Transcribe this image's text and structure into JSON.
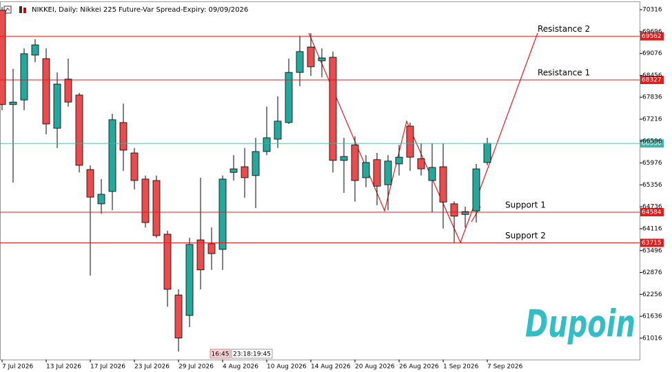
{
  "chart_data": {
    "type": "candlestick",
    "title": "NIKKEI, Daily:  Nikkei 225 Future-Var Spread-Expiry: 09/09/2026",
    "categories": [
      "7 Jul 2026",
      null,
      null,
      null,
      "13 Jul 2026",
      null,
      null,
      null,
      "17 Jul 2026",
      null,
      null,
      null,
      "23 Jul 2026",
      null,
      null,
      null,
      "29 Jul 2026",
      null,
      null,
      null,
      "4 Aug 2026",
      null,
      null,
      null,
      "10 Aug 2026",
      null,
      null,
      null,
      "14 Aug 2026",
      null,
      null,
      null,
      "20 Aug 2026",
      null,
      null,
      null,
      "26 Aug 2026",
      null,
      null,
      null,
      "1 Sep 2026",
      null,
      null,
      null,
      "7 Sep 2026"
    ],
    "series": [
      {
        "up_color": "#28a79c",
        "down_color": "#e84c4c",
        "open": [
          70300,
          67630,
          67760,
          69030,
          68930,
          66960,
          68350,
          67900,
          65790,
          64820,
          65170,
          67120,
          66260,
          65520,
          65480,
          63960,
          62240,
          61660,
          63800,
          63690,
          63530,
          65710,
          65870,
          65620,
          66300,
          66650,
          67120,
          68540,
          69260,
          68870,
          68970,
          66050,
          66490,
          65560,
          66070,
          65360,
          65950,
          67020,
          66100,
          65480,
          65870,
          64820,
          64520,
          64620,
          65990
        ],
        "high": [
          70390,
          68640,
          69220,
          69480,
          69220,
          68540,
          68930,
          67960,
          65910,
          65520,
          67370,
          67660,
          66400,
          65620,
          65620,
          64060,
          62400,
          63860,
          65560,
          64150,
          65620,
          66200,
          66400,
          66690,
          67570,
          67860,
          68930,
          69580,
          69650,
          69220,
          69130,
          66690,
          66730,
          66200,
          66260,
          66200,
          66490,
          67120,
          66530,
          66530,
          66530,
          64890,
          64740,
          65950,
          66690
        ],
        "low": [
          67470,
          65420,
          67470,
          68830,
          66790,
          66400,
          67570,
          65710,
          62790,
          64540,
          64640,
          65750,
          65230,
          64150,
          63860,
          61910,
          60640,
          61330,
          62400,
          62950,
          62950,
          65480,
          64990,
          64700,
          66200,
          66400,
          67080,
          68150,
          68440,
          68400,
          65710,
          65130,
          64880,
          65290,
          64780,
          64640,
          65620,
          65750,
          65620,
          64580,
          64120,
          63720,
          64150,
          64290,
          65910
        ],
        "close": [
          67630,
          67700,
          69070,
          69320,
          67080,
          68210,
          67700,
          65910,
          65010,
          65090,
          67200,
          66340,
          65480,
          64290,
          63920,
          62400,
          61020,
          63670,
          62950,
          63410,
          65520,
          65810,
          65560,
          66300,
          66690,
          67160,
          68540,
          69130,
          68700,
          68950,
          66050,
          66160,
          65480,
          65990,
          65320,
          66030,
          66140,
          66140,
          65810,
          65850,
          64870,
          64470,
          64600,
          65810,
          66530
        ]
      }
    ],
    "ylim": [
      60410,
      70590
    ],
    "yticks": [
      70316,
      69696,
      69076,
      68456,
      67836,
      67216,
      66596,
      65976,
      65356,
      64736,
      64116,
      63496,
      62876,
      62256,
      61636,
      61016
    ],
    "levels": [
      {
        "label": "Resistance 2",
        "value": 69562,
        "color": "#e31b1b"
      },
      {
        "label": "Resistance 1",
        "value": 68327,
        "color": "#e31b1b"
      },
      {
        "label": "Support 1",
        "value": 64584,
        "color": "#e31b1b"
      },
      {
        "label": "Support 2",
        "value": 63715,
        "color": "#e31b1b"
      }
    ],
    "last_price": {
      "value": 66530,
      "color": "#3fb3a8"
    },
    "time_labels": [
      "16:45",
      "23:18:19:45"
    ],
    "brand": "Dupoin"
  }
}
